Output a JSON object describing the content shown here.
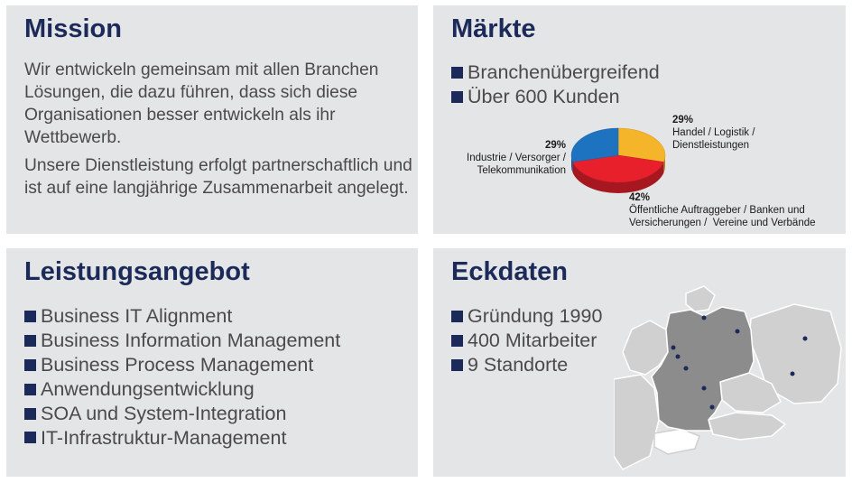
{
  "mission": {
    "title": "Mission",
    "paragraph1": "Wir entwickeln gemeinsam mit allen Branchen Lösungen, die dazu führen, dass sich diese Organisationen besser entwickeln als ihr Wettbewerb.",
    "paragraph2": "Unsere Dienstleistung erfolgt partnerschaftlich und ist auf eine langjährige Zusammenarbeit angelegt."
  },
  "markets": {
    "title": "Märkte",
    "bullets": [
      "Branchenübergreifend",
      "Über 600 Kunden"
    ],
    "chart_data": {
      "type": "pie",
      "slices": [
        {
          "pct_label": "29%",
          "value": 29,
          "label": "Handel / Logistik / Dienstleistungen",
          "color": "#f5b52a"
        },
        {
          "pct_label": "42%",
          "value": 42,
          "label": "Öffentliche Auftraggeber / Banken und Versicherungen /  Vereine und Verbände",
          "color": "#e8202c"
        },
        {
          "pct_label": "29%",
          "value": 29,
          "label": "Industrie / Versorger / Telekommunikation",
          "color": "#1e73c0"
        }
      ]
    }
  },
  "services": {
    "title": "Leistungsangebot",
    "bullets": [
      "Business IT Alignment",
      "Business Information Management",
      "Business Process Management",
      "Anwendungsentwicklung",
      "SOA und System-Integration",
      "IT-Infrastruktur-Management"
    ]
  },
  "facts": {
    "title": "Eckdaten",
    "bullets": [
      "Gründung 1990",
      "400 Mitarbeiter",
      "9 Standorte"
    ]
  },
  "colors": {
    "panel_bg": "#e4e5e6",
    "title": "#1c2a5a",
    "text": "#4a4a4a",
    "map_highlight": "#8c8c8c",
    "map_other": "#ffffff",
    "map_dot": "#1c2a5a"
  }
}
